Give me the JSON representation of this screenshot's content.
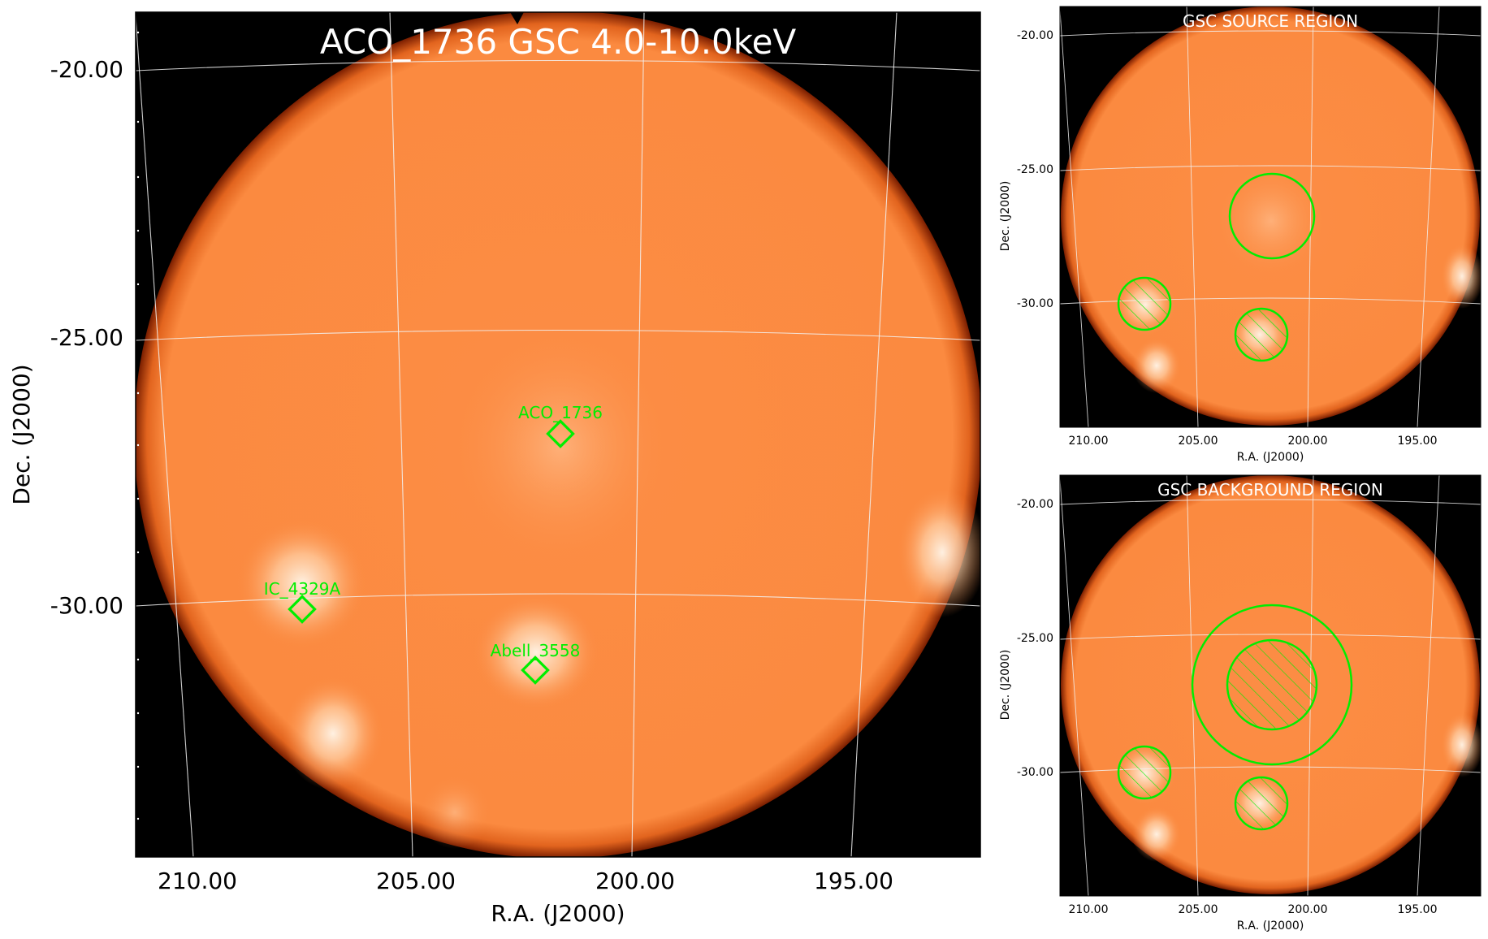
{
  "main_panel": {
    "title": "ACO_1736 GSC 4.0-10.0keV",
    "xlabel": "R.A. (J2000)",
    "ylabel": "Dec. (J2000)",
    "x_ticks": [
      "210.00",
      "205.00",
      "200.00",
      "195.00"
    ],
    "y_ticks": [
      "-20.00",
      "-25.00",
      "-30.00"
    ],
    "sources": [
      {
        "name": "ACO_1736"
      },
      {
        "name": "IC_4329A"
      },
      {
        "name": "Abell_3558"
      }
    ]
  },
  "source_panel": {
    "title": "GSC SOURCE REGION",
    "xlabel": "R.A. (J2000)",
    "ylabel": "Dec. (J2000)",
    "x_ticks": [
      "210.00",
      "205.00",
      "200.00",
      "195.00"
    ],
    "y_ticks": [
      "-20.00",
      "-25.00",
      "-30.00"
    ]
  },
  "background_panel": {
    "title": "GSC BACKGROUND REGION",
    "xlabel": "R.A. (J2000)",
    "ylabel": "Dec. (J2000)",
    "x_ticks": [
      "210.00",
      "205.00",
      "200.00",
      "195.00"
    ],
    "y_ticks": [
      "-20.00",
      "-25.00",
      "-30.00"
    ]
  },
  "colors": {
    "sky_fill": "#fb8a40",
    "background": "#000000",
    "region": "#00ee00",
    "grid": "#f2f2f2"
  }
}
